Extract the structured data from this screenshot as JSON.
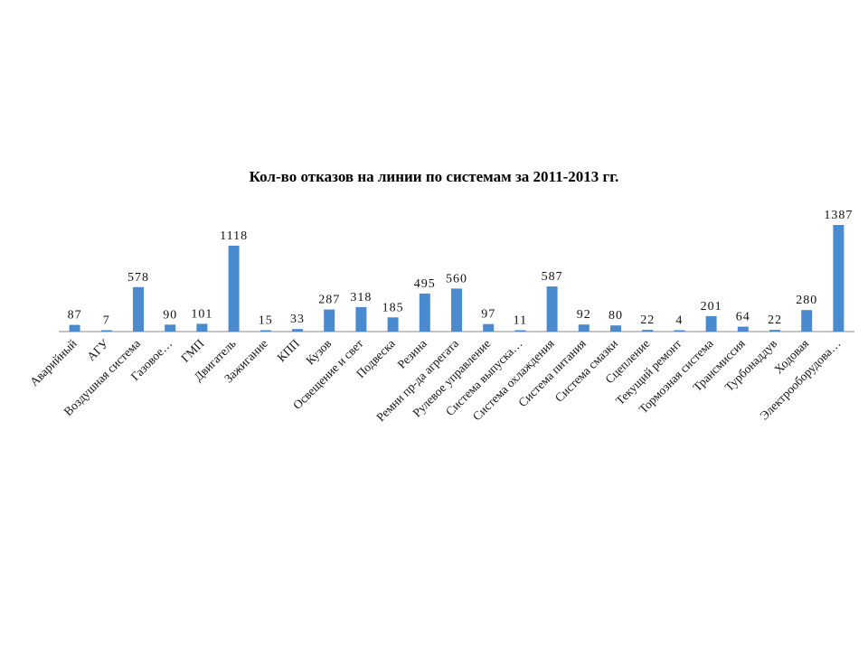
{
  "chart_data": {
    "type": "bar",
    "title": "Кол-во отказов на линии по системам за 2011-2013 гг.",
    "xlabel": "",
    "ylabel": "",
    "ylim": [
      0,
      1500
    ],
    "categories": [
      "Аварийный",
      "АГУ",
      "Воздушная система",
      "Газовое…",
      "ГМП",
      "Двигатель",
      "Зажигание",
      "КПП",
      "Кузов",
      "Освещение и свет",
      "Подвеска",
      "Резина",
      "Ремни пр-да агрегата",
      "Рулевое управление",
      "Система выпуска…",
      "Система охлаждения",
      "Система питания",
      "Система смазки",
      "Сцепление",
      "Текущий ремонт",
      "Тормозная система",
      "Трансмиссия",
      "Турбонаддув",
      "Ходовая",
      "Электрооборудова…"
    ],
    "values": [
      87,
      7,
      578,
      90,
      101,
      1118,
      15,
      33,
      287,
      318,
      185,
      495,
      560,
      97,
      11,
      587,
      92,
      80,
      22,
      4,
      201,
      64,
      22,
      280,
      1387
    ],
    "series_color": "#4a8bd0",
    "grid": false,
    "legend": "none"
  }
}
